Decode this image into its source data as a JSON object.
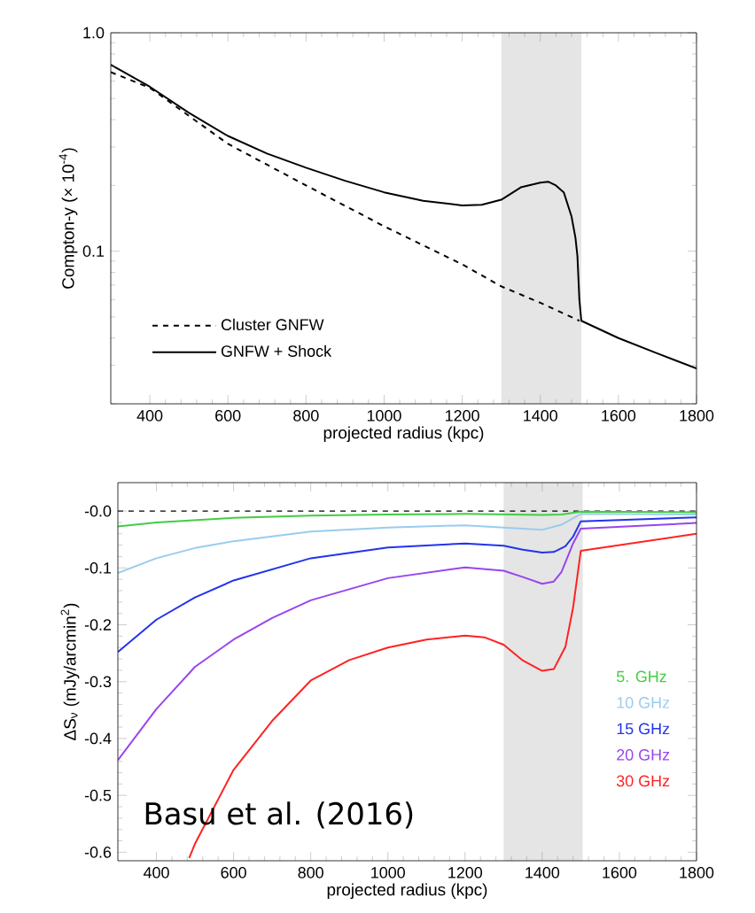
{
  "chart_data": [
    {
      "type": "line",
      "xlabel": "projected radius (kpc)",
      "ylabel": "Compton-y (× 10$^{-4}$)",
      "log": "y",
      "xlim": [
        300,
        1800
      ],
      "xticks": [
        400,
        600,
        800,
        1000,
        1200,
        1400,
        1600,
        1800
      ],
      "ylim": [
        0.02,
        1.0
      ],
      "yticks": [
        {
          "value": 1.0,
          "label": "1.0"
        },
        0.1
      ],
      "legend": "bottom left",
      "bands": [
        {
          "axis": "x",
          "from": 1300,
          "to": 1505,
          "color": "#e5e5e5"
        }
      ],
      "series": [
        {
          "name": "Cluster GNFW",
          "color": "#000000",
          "line_style": "dashed",
          "x": [
            300,
            400,
            600,
            800,
            1000,
            1200,
            1300,
            1400,
            1500
          ],
          "values": [
            0.66,
            0.56,
            0.31,
            0.2,
            0.13,
            0.087,
            0.069,
            0.058,
            0.048
          ]
        },
        {
          "name": "GNFW + Shock",
          "color": "#000000",
          "line_style": "solid",
          "x": [
            300,
            400,
            500,
            600,
            700,
            800,
            900,
            1000,
            1100,
            1200,
            1250,
            1300,
            1350,
            1400,
            1420,
            1440,
            1460,
            1480,
            1490,
            1495,
            1500,
            1505,
            1600,
            1700,
            1800
          ],
          "values": [
            0.714,
            0.566,
            0.43,
            0.337,
            0.28,
            0.241,
            0.21,
            0.186,
            0.17,
            0.162,
            0.163,
            0.172,
            0.196,
            0.206,
            0.208,
            0.2,
            0.186,
            0.144,
            0.115,
            0.095,
            0.06,
            0.048,
            0.04,
            0.034,
            0.029
          ]
        }
      ]
    },
    {
      "type": "line",
      "xlabel": "projected radius (kpc)",
      "ylabel": "ΔS$_{ν}$ (mJy/arcmin$^{2}$)",
      "xlim": [
        300,
        1800
      ],
      "xticks": [
        400,
        600,
        800,
        1000,
        1200,
        1400,
        1600,
        1800
      ],
      "ylim": [
        -0.615,
        0.05
      ],
      "yticks": [
        -0.6,
        -0.5,
        -0.4,
        -0.3,
        -0.2,
        -0.1,
        {
          "value": 0,
          "label": "-0.0"
        }
      ],
      "legend": "bottom right",
      "bands": [
        {
          "axis": "x",
          "from": 1300,
          "to": 1505,
          "color": "#e5e5e5"
        }
      ],
      "ref_lines": [
        {
          "axis": "y",
          "value": 0,
          "color": "#000000",
          "line_style": "dashed"
        }
      ],
      "annotations": [
        "Basu et al. (2016)"
      ],
      "series": [
        {
          "name": "5. GHz",
          "color": "#44cc44",
          "x": [
            300,
            400,
            600,
            800,
            1000,
            1200,
            1300,
            1400,
            1450,
            1500,
            1800
          ],
          "values": [
            -0.027,
            -0.02,
            -0.012,
            -0.008,
            -0.006,
            -0.005,
            -0.006,
            -0.007,
            -0.006,
            -0.001,
            -0.002
          ]
        },
        {
          "name": "10 GHz",
          "color": "#99ccee",
          "x": [
            300,
            400,
            500,
            600,
            800,
            1000,
            1200,
            1300,
            1400,
            1450,
            1500,
            1800
          ],
          "values": [
            -0.109,
            -0.083,
            -0.065,
            -0.053,
            -0.036,
            -0.029,
            -0.025,
            -0.029,
            -0.033,
            -0.024,
            -0.005,
            -0.006
          ]
        },
        {
          "name": "15 GHz",
          "color": "#2233ee",
          "x": [
            300,
            400,
            500,
            600,
            800,
            1000,
            1200,
            1300,
            1350,
            1400,
            1430,
            1460,
            1480,
            1500,
            1800
          ],
          "values": [
            -0.248,
            -0.191,
            -0.152,
            -0.122,
            -0.083,
            -0.064,
            -0.057,
            -0.061,
            -0.068,
            -0.073,
            -0.072,
            -0.062,
            -0.045,
            -0.018,
            -0.011
          ]
        },
        {
          "name": "20 GHz",
          "color": "#9944ee",
          "x": [
            300,
            400,
            500,
            600,
            700,
            800,
            1000,
            1200,
            1300,
            1350,
            1400,
            1430,
            1450,
            1480,
            1500,
            1800
          ],
          "values": [
            -0.438,
            -0.348,
            -0.274,
            -0.226,
            -0.188,
            -0.157,
            -0.118,
            -0.099,
            -0.105,
            -0.116,
            -0.128,
            -0.124,
            -0.107,
            -0.057,
            -0.031,
            -0.021
          ]
        },
        {
          "name": "30 GHz",
          "color": "#ff2222",
          "x": [
            485,
            500,
            600,
            700,
            800,
            900,
            1000,
            1100,
            1200,
            1250,
            1300,
            1350,
            1400,
            1430,
            1460,
            1480,
            1500,
            1800
          ],
          "values": [
            -0.61,
            -0.585,
            -0.455,
            -0.369,
            -0.298,
            -0.262,
            -0.24,
            -0.226,
            -0.219,
            -0.222,
            -0.235,
            -0.263,
            -0.281,
            -0.278,
            -0.239,
            -0.17,
            -0.07,
            -0.04
          ]
        }
      ]
    }
  ]
}
